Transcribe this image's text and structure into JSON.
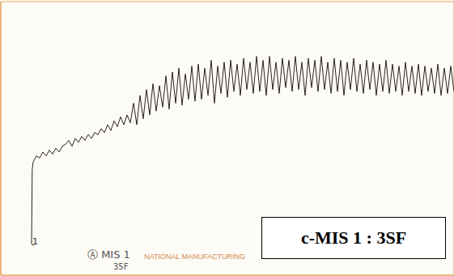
{
  "chart_data": {
    "type": "line",
    "tick_labels": false,
    "grid": true,
    "color": "#2a2320",
    "box_label": "c-MIS 1 : 3SF",
    "annotations": [
      "1",
      "Ⓐ MIS 1",
      "35F",
      "NATIONAL MANUFACTURING"
    ],
    "xlim": [
      0,
      14
    ],
    "xticks": [
      0,
      1,
      2,
      3,
      4,
      5,
      6,
      7,
      8,
      9,
      10,
      11,
      12,
      13,
      14
    ],
    "ylim": [
      0,
      7
    ],
    "yticks": [
      0,
      1,
      2,
      3,
      4,
      5,
      6,
      7
    ],
    "x": [
      1.03,
      0.95,
      0.97,
      1.0,
      1.1,
      1.2,
      1.3,
      1.4,
      1.5,
      1.6,
      1.7,
      1.8,
      1.9,
      2.0,
      2.1,
      2.2,
      2.3,
      2.4,
      2.5,
      2.6,
      2.7,
      2.8,
      2.9,
      3.0,
      3.1,
      3.2,
      3.3,
      3.4,
      3.5,
      3.6,
      3.7,
      3.8,
      3.9,
      4.0,
      4.1,
      4.2,
      4.3,
      4.4,
      4.5,
      4.6,
      4.7,
      4.8,
      4.9,
      5.0,
      5.1,
      5.2,
      5.3,
      5.4,
      5.5,
      5.6,
      5.7,
      5.8,
      5.9,
      6.0,
      6.1,
      6.2,
      6.3,
      6.4,
      6.5,
      6.6,
      6.7,
      6.8,
      6.9,
      7.0,
      7.1,
      7.2,
      7.3,
      7.4,
      7.5,
      7.6,
      7.7,
      7.8,
      7.9,
      8.0,
      8.1,
      8.2,
      8.3,
      8.4,
      8.5,
      8.6,
      8.7,
      8.8,
      8.9,
      9.0,
      9.1,
      9.2,
      9.3,
      9.4,
      9.5,
      9.6,
      9.7,
      9.8,
      9.9,
      10.0,
      10.1,
      10.2,
      10.3,
      10.4,
      10.5,
      10.6,
      10.7,
      10.8,
      10.9,
      11.0,
      11.1,
      11.2,
      11.3,
      11.4,
      11.5,
      11.6,
      11.7,
      11.8,
      11.9,
      12.0,
      12.1,
      12.2,
      12.3,
      12.4,
      12.5,
      12.6,
      12.7,
      12.8,
      12.9,
      13.0,
      13.1,
      13.2,
      13.3,
      13.4,
      13.5,
      13.6,
      13.7,
      13.8,
      13.9,
      14.0
    ],
    "values": [
      0.75,
      0.8,
      2.7,
      2.9,
      3.05,
      3.0,
      3.15,
      3.05,
      3.2,
      3.1,
      3.25,
      3.15,
      3.3,
      3.35,
      3.45,
      3.3,
      3.5,
      3.4,
      3.55,
      3.45,
      3.6,
      3.5,
      3.65,
      3.6,
      3.75,
      3.65,
      3.85,
      3.7,
      3.95,
      3.8,
      4.05,
      3.85,
      4.1,
      3.9,
      4.4,
      3.85,
      4.6,
      4.0,
      4.75,
      4.1,
      4.9,
      4.2,
      4.85,
      4.3,
      5.1,
      4.25,
      5.2,
      4.4,
      5.3,
      4.35,
      5.15,
      4.5,
      5.35,
      4.45,
      5.4,
      4.5,
      5.3,
      4.6,
      5.5,
      4.4,
      5.35,
      4.65,
      5.45,
      4.55,
      5.5,
      4.7,
      5.4,
      4.6,
      5.55,
      4.75,
      5.45,
      4.65,
      5.6,
      4.7,
      5.5,
      4.6,
      5.6,
      4.75,
      5.45,
      4.65,
      5.55,
      4.8,
      5.5,
      4.7,
      5.6,
      4.75,
      5.45,
      4.6,
      5.55,
      4.8,
      5.5,
      4.7,
      5.6,
      4.75,
      5.45,
      4.65,
      5.55,
      4.7,
      5.5,
      4.6,
      5.45,
      4.75,
      5.55,
      4.7,
      5.4,
      4.65,
      5.5,
      4.75,
      5.45,
      4.6,
      5.4,
      4.7,
      5.5,
      4.65,
      5.4,
      4.7,
      5.35,
      4.6,
      5.45,
      4.7,
      5.35,
      4.65,
      5.4,
      4.6,
      5.35,
      4.7,
      5.3,
      4.65,
      5.4,
      4.6,
      5.3,
      4.65,
      5.35,
      4.7
    ]
  }
}
